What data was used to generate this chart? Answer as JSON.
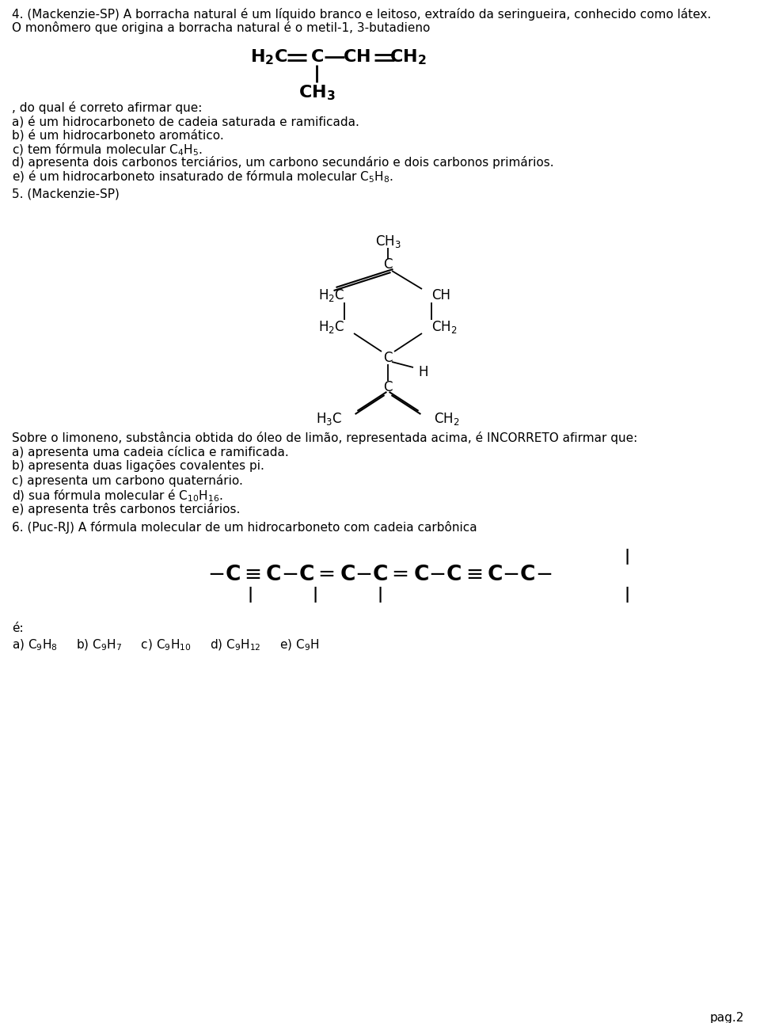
{
  "bg": "#ffffff",
  "fg": "#000000",
  "line1": "4. (Mackenzie-SP) A borracha natural é um líquido branco e leitoso, extraído da seringueira, conhecido como látex.",
  "line2": "O monômero que origina a borracha natural é o metil-1, 3-butadieno",
  "after_struct1": ", do qual é correto afirmar que:",
  "opt_a1": "a) é um hidrocarboneto de cadeia saturada e ramificada.",
  "opt_b1": "b) é um hidrocarboneto aromático.",
  "opt_c1": "c) tem fórmula molecular C$_4$H$_5$.",
  "opt_d1": "d) apresenta dois carbonos terciários, um carbono secundário e dois carbonos primários.",
  "opt_e1": "e) é um hidrocarboneto insaturado de fórmula molecular C$_5$H$_8$.",
  "sec5": "5. (Mackenzie-SP)",
  "sobre": "Sobre o limoneno, substância obtida do óleo de limão, representada acima, é INCORRETO afirmar que:",
  "opt_a2": "a) apresenta uma cadeia cíclica e ramificada.",
  "opt_b2": "b) apresenta duas ligações covalentes pi.",
  "opt_c2": "c) apresenta um carbono quaternário.",
  "opt_d2": "d) sua fórmula molecular é C$_{10}$H$_{16}$.",
  "opt_e2": "e) apresenta três carbonos terciários.",
  "sec6": "6. (Puc-RJ) A fórmula molecular de um hidrocarboneto com cadeia carbônica",
  "e_label": "é:",
  "answers": "a) C$_9$H$_8$     b) C$_9$H$_7$     c) C$_9$H$_{10}$     d) C$_9$H$_{12}$     e) C$_9$H",
  "pag": "pag.2"
}
